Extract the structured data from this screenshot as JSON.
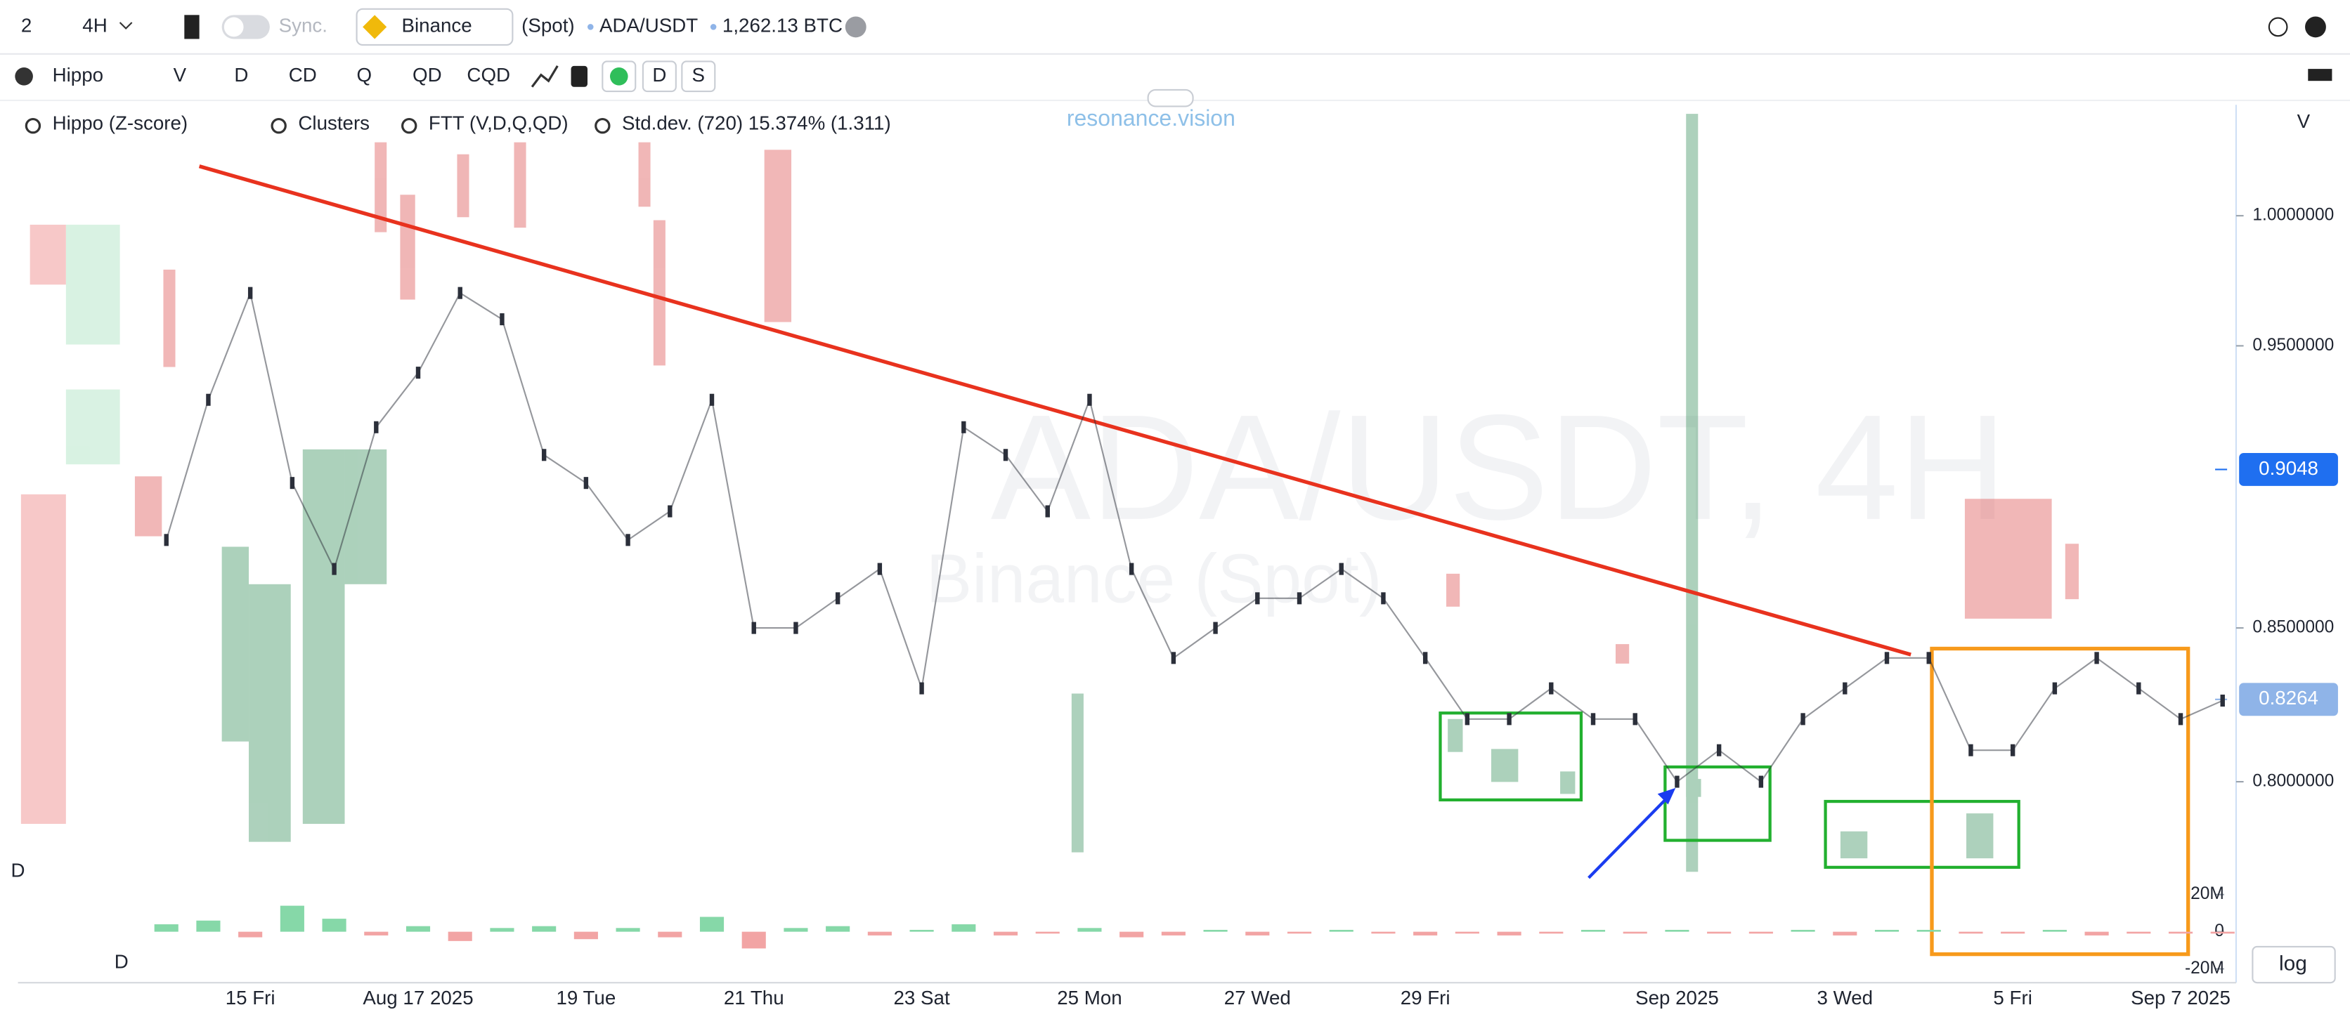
{
  "toolbar": {
    "layouts": "2",
    "timeframe": "4H",
    "sync": "Sync.",
    "exchange": "Binance",
    "market": "(Spot)",
    "pair": "ADA/USDT",
    "volume": "1,262.13 BTC"
  },
  "indicator_bar": {
    "items": [
      "Hippo",
      "V",
      "D",
      "CD",
      "Q",
      "QD",
      "CQD",
      "D",
      "S"
    ]
  },
  "legend": [
    "Hippo (Z-score)",
    "Clusters",
    "FTT (V,D,Q,QD)",
    "Std.dev. (720) 15.374% (1.311)"
  ],
  "watermark": {
    "brand": "resonance.vision",
    "symbol": "ADA/USDT, 4H",
    "source": "Binance (Spot)"
  },
  "pane_labels": {
    "price_axis": "V",
    "profile": "D",
    "delta": "D"
  },
  "log_button": "log",
  "chart_data": {
    "type": "line",
    "categories": [
      null,
      null,
      "15 Fri",
      null,
      null,
      null,
      "Aug 17 2025",
      null,
      null,
      null,
      "19 Tue",
      null,
      null,
      null,
      "21 Thu",
      null,
      null,
      null,
      "23 Sat",
      null,
      null,
      null,
      "25 Mon",
      null,
      null,
      null,
      "27 Wed",
      null,
      null,
      null,
      "29 Fri",
      null,
      null,
      null,
      null,
      null,
      "Sep 2025",
      null,
      null,
      null,
      "3 Wed",
      null,
      null,
      null,
      "5 Fri",
      null,
      null,
      null,
      "Sep 7 2025",
      null
    ],
    "values": [
      0.88,
      0.93,
      0.97,
      0.9,
      0.87,
      0.92,
      0.94,
      0.97,
      0.96,
      0.91,
      0.9,
      0.88,
      0.89,
      0.93,
      0.85,
      0.85,
      0.86,
      0.87,
      0.83,
      0.92,
      0.91,
      0.89,
      0.93,
      0.87,
      0.84,
      0.85,
      0.86,
      0.86,
      0.87,
      0.86,
      0.84,
      0.82,
      0.82,
      0.83,
      0.82,
      0.82,
      0.8,
      0.81,
      0.8,
      0.82,
      0.83,
      0.84,
      0.84,
      0.81,
      0.81,
      0.83,
      0.84,
      0.83,
      0.82,
      0.826
    ],
    "color": "#2b2f3a",
    "log_scale": true,
    "ylim": [
      0.773,
      1.0416
    ],
    "yticks": [
      {
        "value": 1.0,
        "label": "1.0000000"
      },
      {
        "value": 0.95,
        "label": "0.9500000"
      },
      {
        "value": 0.85,
        "label": "0.8500000"
      },
      {
        "value": 0.8,
        "label": "0.8000000"
      }
    ],
    "price_labels": [
      {
        "value": 0.9048,
        "label": "0.9048",
        "color": "#1f6ff0"
      },
      {
        "value": 0.8264,
        "label": "0.8264",
        "color": "#8fb4e8"
      }
    ],
    "volume": {
      "values": [
        4000000,
        6000000,
        -3000000,
        14000000,
        7000000,
        -2000000,
        3000000,
        -5000000,
        2000000,
        3000000,
        -4000000,
        2000000,
        -3000000,
        8000000,
        -9000000,
        2000000,
        3000000,
        -2000000,
        1000000,
        4000000,
        -2000000,
        -1000000,
        2000000,
        -3000000,
        -2000000,
        1000000,
        -2000000,
        -1000000,
        1000000,
        -1000000,
        -2000000,
        -1000000,
        -2000000,
        -1000000,
        1000000,
        -1000000,
        1000000,
        -1000000,
        -1000000,
        1000000,
        -2000000,
        1000000,
        1000000,
        -1000000,
        -1000000,
        1000000,
        -2000000,
        -1000000,
        -1000000,
        -1000000
      ],
      "up_color": "#86d8a8",
      "down_color": "#f2a4a4",
      "ylim": [
        -25000000,
        25000000
      ],
      "yticks": [
        {
          "value": 20000000,
          "label": "20M"
        },
        0,
        {
          "value": -20000000,
          "label": "-20M"
        }
      ]
    }
  }
}
